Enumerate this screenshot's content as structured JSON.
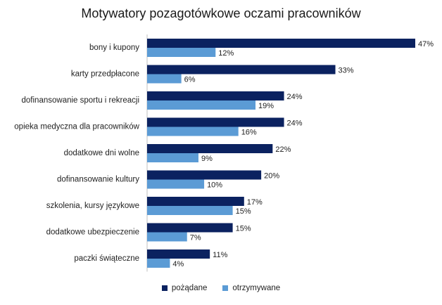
{
  "chart_data": {
    "type": "bar",
    "orientation": "horizontal",
    "title": "Motywatory pozagotówkowe oczami pracowników",
    "categories": [
      "bony i kupony",
      "karty przedpłacone",
      "dofinansowanie sportu i rekreacji",
      "opieka medyczna dla pracowników",
      "dodatkowe dni wolne",
      "dofinansowanie kultury",
      "szkolenia, kursy językowe",
      "dodatkowe ubezpieczenie",
      "paczki świąteczne"
    ],
    "series": [
      {
        "name": "pożądane",
        "color": "#0b2260",
        "values": [
          47,
          33,
          24,
          24,
          22,
          20,
          17,
          15,
          11
        ]
      },
      {
        "name": "otrzymywane",
        "color": "#5b9bd5",
        "values": [
          12,
          6,
          19,
          16,
          9,
          10,
          15,
          7,
          4
        ]
      }
    ],
    "value_suffix": "%",
    "xlim": [
      0,
      47
    ],
    "grid": false,
    "legend_position": "bottom"
  }
}
